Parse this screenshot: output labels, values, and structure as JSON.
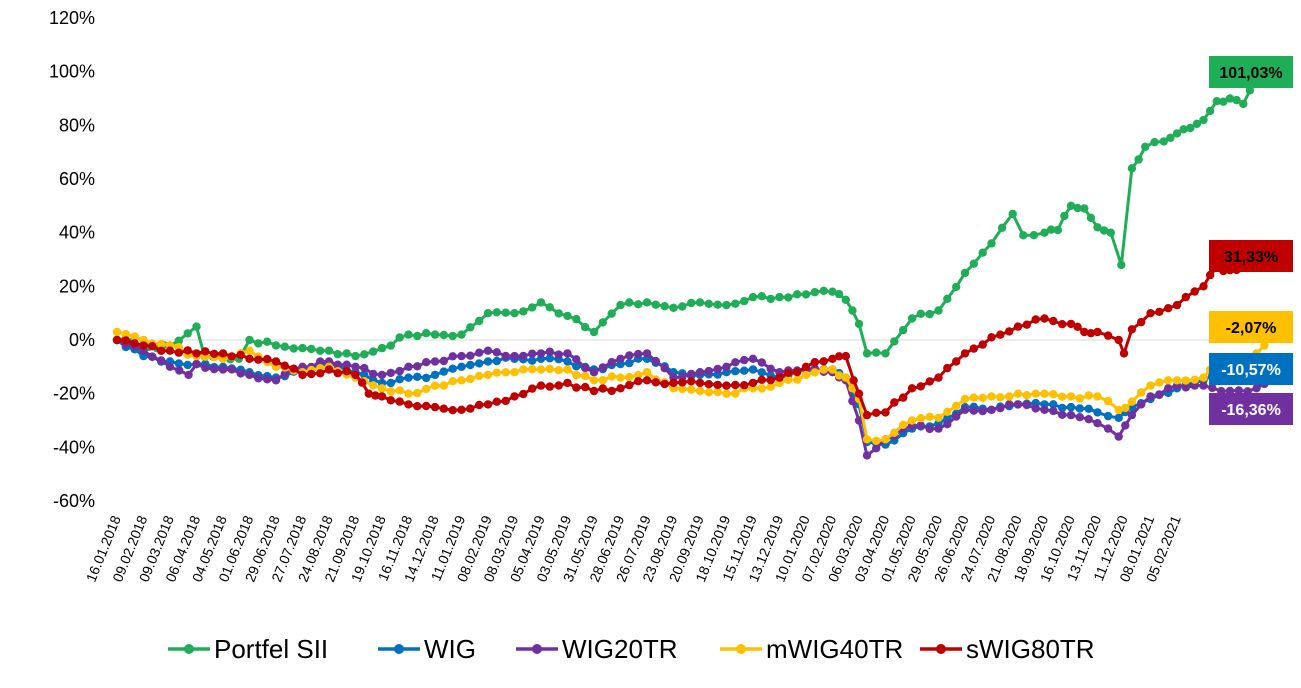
{
  "chart_data": {
    "type": "line",
    "title": "",
    "xlabel": "",
    "ylabel": "",
    "ylim": [
      -60,
      120
    ],
    "y_ticks": [
      "120%",
      "100%",
      "80%",
      "60%",
      "40%",
      "20%",
      "0%",
      "-20%",
      "-40%",
      "-60%"
    ],
    "grid": false,
    "legend_position": "bottom",
    "x_tick_labels": [
      "16.01.2018",
      "09.02.2018",
      "09.03.2018",
      "06.04.2018",
      "04.05.2018",
      "01.06.2018",
      "29.06.2018",
      "27.07.2018",
      "24.08.2018",
      "21.09.2018",
      "19.10.2018",
      "16.11.2018",
      "14.12.2018",
      "11.01.2019",
      "08.02.2019",
      "08.03.2019",
      "05.04.2019",
      "03.05.2019",
      "31.05.2019",
      "28.06.2019",
      "26.07.2019",
      "23.08.2019",
      "20.09.2019",
      "18.10.2019",
      "15.11.2019",
      "13.12.2019",
      "10.01.2020",
      "07.02.2020",
      "06.03.2020",
      "03.04.2020",
      "01.05.2020",
      "29.05.2020",
      "26.06.2020",
      "24.07.2020",
      "21.08.2020",
      "18.09.2020",
      "16.10.2020",
      "13.11.2020",
      "11.12.2020",
      "08.01.2021",
      "05.02.2021"
    ],
    "series": [
      {
        "name": "Portfel SII",
        "color": "#1fae57",
        "end_label": "101,03%",
        "points": [
          [
            0,
            0
          ],
          [
            1.5,
            -3
          ],
          [
            2,
            -2
          ],
          [
            3,
            5
          ],
          [
            3.3,
            -6
          ],
          [
            4.6,
            -7
          ],
          [
            5,
            0
          ],
          [
            6,
            -2
          ],
          [
            7,
            -3
          ],
          [
            8,
            -4
          ],
          [
            9,
            -6
          ],
          [
            10,
            -3
          ],
          [
            11,
            2
          ],
          [
            12,
            2
          ],
          [
            13,
            2
          ],
          [
            14,
            10
          ],
          [
            15,
            10
          ],
          [
            16,
            14
          ],
          [
            17,
            9
          ],
          [
            18,
            3
          ],
          [
            19,
            13
          ],
          [
            20,
            14
          ],
          [
            21,
            12
          ],
          [
            22,
            14
          ],
          [
            23,
            13
          ],
          [
            24,
            16
          ],
          [
            25,
            16
          ],
          [
            26,
            17
          ],
          [
            27,
            18
          ],
          [
            27.5,
            15
          ],
          [
            28,
            6
          ],
          [
            28.3,
            -5
          ],
          [
            29,
            -5
          ],
          [
            30,
            8
          ],
          [
            31,
            11
          ],
          [
            32,
            25
          ],
          [
            33,
            36
          ],
          [
            33.8,
            47
          ],
          [
            34.2,
            39
          ],
          [
            35,
            40
          ],
          [
            35.5,
            41
          ],
          [
            36,
            50
          ],
          [
            36.5,
            49
          ],
          [
            37,
            42
          ],
          [
            37.5,
            40
          ],
          [
            37.9,
            28
          ],
          [
            38.3,
            64
          ],
          [
            38.8,
            72
          ],
          [
            39.5,
            74
          ],
          [
            40,
            77
          ],
          [
            40.5,
            79
          ],
          [
            41,
            82
          ],
          [
            41.5,
            89
          ],
          [
            42,
            90
          ],
          [
            42.5,
            88
          ],
          [
            43,
            97
          ],
          [
            43.3,
            101.03
          ]
        ]
      },
      {
        "name": "WIG",
        "color": "#0070c0",
        "end_label": "-10,57%",
        "points": [
          [
            0,
            0
          ],
          [
            1,
            -6
          ],
          [
            2,
            -8
          ],
          [
            3,
            -9
          ],
          [
            4,
            -10
          ],
          [
            5,
            -12
          ],
          [
            6,
            -14
          ],
          [
            7,
            -11
          ],
          [
            8,
            -9
          ],
          [
            9,
            -12
          ],
          [
            10,
            -16
          ],
          [
            11,
            -14
          ],
          [
            12,
            -13
          ],
          [
            13,
            -10
          ],
          [
            14,
            -8
          ],
          [
            15,
            -7
          ],
          [
            16,
            -7
          ],
          [
            17,
            -8
          ],
          [
            18,
            -11
          ],
          [
            19,
            -9
          ],
          [
            20,
            -7
          ],
          [
            21,
            -12
          ],
          [
            22,
            -13
          ],
          [
            23,
            -12
          ],
          [
            24,
            -11
          ],
          [
            25,
            -14
          ],
          [
            26,
            -11
          ],
          [
            27,
            -11
          ],
          [
            27.5,
            -14
          ],
          [
            28,
            -24
          ],
          [
            28.3,
            -38
          ],
          [
            29,
            -39
          ],
          [
            30,
            -33
          ],
          [
            31,
            -31
          ],
          [
            32,
            -25
          ],
          [
            33,
            -26
          ],
          [
            34,
            -24
          ],
          [
            35,
            -24
          ],
          [
            36,
            -25
          ],
          [
            37,
            -27
          ],
          [
            37.8,
            -29
          ],
          [
            38.3,
            -25
          ],
          [
            39,
            -22
          ],
          [
            40,
            -18
          ],
          [
            41,
            -15
          ],
          [
            42,
            -12
          ],
          [
            42.6,
            -14
          ],
          [
            43,
            -13
          ],
          [
            43.3,
            -10.57
          ]
        ]
      },
      {
        "name": "WIG20TR",
        "color": "#7030a0",
        "end_label": "-16,36%",
        "points": [
          [
            0,
            0
          ],
          [
            1,
            -4
          ],
          [
            2,
            -10
          ],
          [
            2.7,
            -13
          ],
          [
            3,
            -9
          ],
          [
            4,
            -11
          ],
          [
            5,
            -13
          ],
          [
            6,
            -15
          ],
          [
            7,
            -10
          ],
          [
            8,
            -8
          ],
          [
            9,
            -10
          ],
          [
            10,
            -13
          ],
          [
            11,
            -10
          ],
          [
            12,
            -8
          ],
          [
            13,
            -6
          ],
          [
            14,
            -4
          ],
          [
            15,
            -6
          ],
          [
            16,
            -5
          ],
          [
            17,
            -5
          ],
          [
            18,
            -12
          ],
          [
            19,
            -7
          ],
          [
            20,
            -5
          ],
          [
            21,
            -14
          ],
          [
            22,
            -12
          ],
          [
            23,
            -10
          ],
          [
            24,
            -7
          ],
          [
            25,
            -12
          ],
          [
            26,
            -11
          ],
          [
            27,
            -12
          ],
          [
            27.5,
            -15
          ],
          [
            28,
            -30
          ],
          [
            28.3,
            -43
          ],
          [
            29,
            -37
          ],
          [
            30,
            -32
          ],
          [
            31,
            -33
          ],
          [
            32,
            -26
          ],
          [
            33,
            -26
          ],
          [
            34,
            -24
          ],
          [
            35,
            -26
          ],
          [
            36,
            -28
          ],
          [
            37,
            -31
          ],
          [
            37.8,
            -36
          ],
          [
            38.3,
            -28
          ],
          [
            39,
            -21
          ],
          [
            40,
            -17
          ],
          [
            41,
            -17
          ],
          [
            42,
            -19
          ],
          [
            43,
            -18
          ],
          [
            43.3,
            -16.36
          ]
        ]
      },
      {
        "name": "mWIG40TR",
        "color": "#ffc000",
        "end_label": "-2,07%",
        "points": [
          [
            0,
            3
          ],
          [
            1,
            0
          ],
          [
            2,
            -2
          ],
          [
            3,
            -6
          ],
          [
            4,
            -7
          ],
          [
            5,
            -4
          ],
          [
            6,
            -10
          ],
          [
            7,
            -12
          ],
          [
            8,
            -10
          ],
          [
            9,
            -14
          ],
          [
            10,
            -18
          ],
          [
            11,
            -20
          ],
          [
            12,
            -17
          ],
          [
            13,
            -15
          ],
          [
            14,
            -13
          ],
          [
            15,
            -12
          ],
          [
            16,
            -11
          ],
          [
            17,
            -11
          ],
          [
            18,
            -15
          ],
          [
            19,
            -14
          ],
          [
            20,
            -12
          ],
          [
            21,
            -18
          ],
          [
            22,
            -19
          ],
          [
            23,
            -20
          ],
          [
            24,
            -18
          ],
          [
            25,
            -16
          ],
          [
            26,
            -13
          ],
          [
            27,
            -11
          ],
          [
            27.5,
            -14
          ],
          [
            28,
            -22
          ],
          [
            28.3,
            -37
          ],
          [
            29,
            -37
          ],
          [
            30,
            -30
          ],
          [
            31,
            -29
          ],
          [
            32,
            -22
          ],
          [
            33,
            -21
          ],
          [
            34,
            -20
          ],
          [
            35,
            -20
          ],
          [
            36,
            -21
          ],
          [
            37,
            -21
          ],
          [
            37.8,
            -26
          ],
          [
            38.3,
            -23
          ],
          [
            39,
            -17
          ],
          [
            40,
            -15
          ],
          [
            41,
            -14
          ],
          [
            41.5,
            -7
          ],
          [
            42,
            -9
          ],
          [
            42.5,
            -8
          ],
          [
            43,
            -5
          ],
          [
            43.3,
            -2.07
          ]
        ]
      },
      {
        "name": "sWIG80TR",
        "color": "#c00000",
        "end_label": "31,33%",
        "points": [
          [
            0,
            0
          ],
          [
            1,
            -2
          ],
          [
            2,
            -4
          ],
          [
            3,
            -5
          ],
          [
            4,
            -5
          ],
          [
            5,
            -7
          ],
          [
            6,
            -8
          ],
          [
            7,
            -13
          ],
          [
            8,
            -11
          ],
          [
            9,
            -13
          ],
          [
            9.5,
            -20
          ],
          [
            10,
            -21
          ],
          [
            11,
            -24
          ],
          [
            12,
            -25
          ],
          [
            13,
            -26
          ],
          [
            14,
            -24
          ],
          [
            15,
            -21
          ],
          [
            16,
            -17
          ],
          [
            17,
            -16
          ],
          [
            18,
            -19
          ],
          [
            19,
            -18
          ],
          [
            20,
            -15
          ],
          [
            21,
            -16
          ],
          [
            22,
            -16
          ],
          [
            23,
            -17
          ],
          [
            24,
            -16
          ],
          [
            25,
            -14
          ],
          [
            26,
            -10
          ],
          [
            27,
            -7
          ],
          [
            27.5,
            -6
          ],
          [
            27.8,
            -15
          ],
          [
            28,
            -20
          ],
          [
            28.3,
            -28
          ],
          [
            29,
            -27
          ],
          [
            30,
            -18
          ],
          [
            31,
            -14
          ],
          [
            32,
            -5
          ],
          [
            33,
            1
          ],
          [
            34,
            5
          ],
          [
            35,
            8
          ],
          [
            36,
            6
          ],
          [
            36.5,
            3
          ],
          [
            37,
            3
          ],
          [
            37.8,
            0
          ],
          [
            38,
            -5
          ],
          [
            38.3,
            4
          ],
          [
            39,
            10
          ],
          [
            40,
            13
          ],
          [
            41,
            20
          ],
          [
            41.5,
            27
          ],
          [
            42,
            26
          ],
          [
            42.5,
            27
          ],
          [
            43,
            31
          ],
          [
            43.3,
            31.33
          ]
        ]
      }
    ]
  }
}
